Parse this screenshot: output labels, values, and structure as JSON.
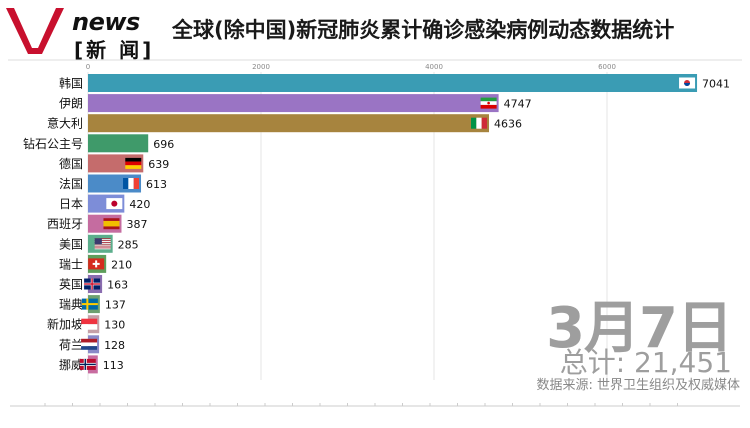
{
  "header": {
    "logo_en": "news",
    "logo_cn": "[新 闻]",
    "title": "全球(除中国)新冠肺炎累计确诊感染病例动态数据统计"
  },
  "overlay": {
    "date": "3月7日",
    "total": "总计: 21,451",
    "source": "数据来源: 世界卫生组织及权威媒体"
  },
  "colors": {
    "brand": "#c8102e",
    "axis_text": "#888888",
    "overlay_text": "#9e9e9e"
  },
  "chart_data": {
    "type": "bar",
    "orientation": "horizontal",
    "title": "全球(除中国)新冠肺炎累计确诊感染病例动态数据统计",
    "xlim": [
      0,
      7200
    ],
    "x_ticks": [
      0,
      2000,
      4000,
      6000
    ],
    "grid": true,
    "categories": [
      "韩国",
      "伊朗",
      "意大利",
      "钻石公主号",
      "德国",
      "法国",
      "日本",
      "西班牙",
      "美国",
      "瑞士",
      "英国",
      "瑞典",
      "新加坡",
      "荷兰",
      "挪威"
    ],
    "values": [
      7041,
      4747,
      4636,
      696,
      639,
      613,
      420,
      387,
      285,
      210,
      163,
      137,
      130,
      128,
      113
    ],
    "bar_colors": [
      "#3a9cb4",
      "#9a74c4",
      "#a7843e",
      "#3f9a6a",
      "#c56c6c",
      "#4b8bc8",
      "#7d8dd8",
      "#c56ca0",
      "#5cae8c",
      "#5e9e5c",
      "#8a6db0",
      "#6ea070",
      "#c5a0a8",
      "#8a8ac8",
      "#c86ca0"
    ],
    "flags": [
      "kr",
      "ir",
      "it",
      "",
      "de",
      "fr",
      "jp",
      "es",
      "us",
      "ch",
      "gb",
      "se",
      "sg",
      "nl",
      "no"
    ]
  }
}
